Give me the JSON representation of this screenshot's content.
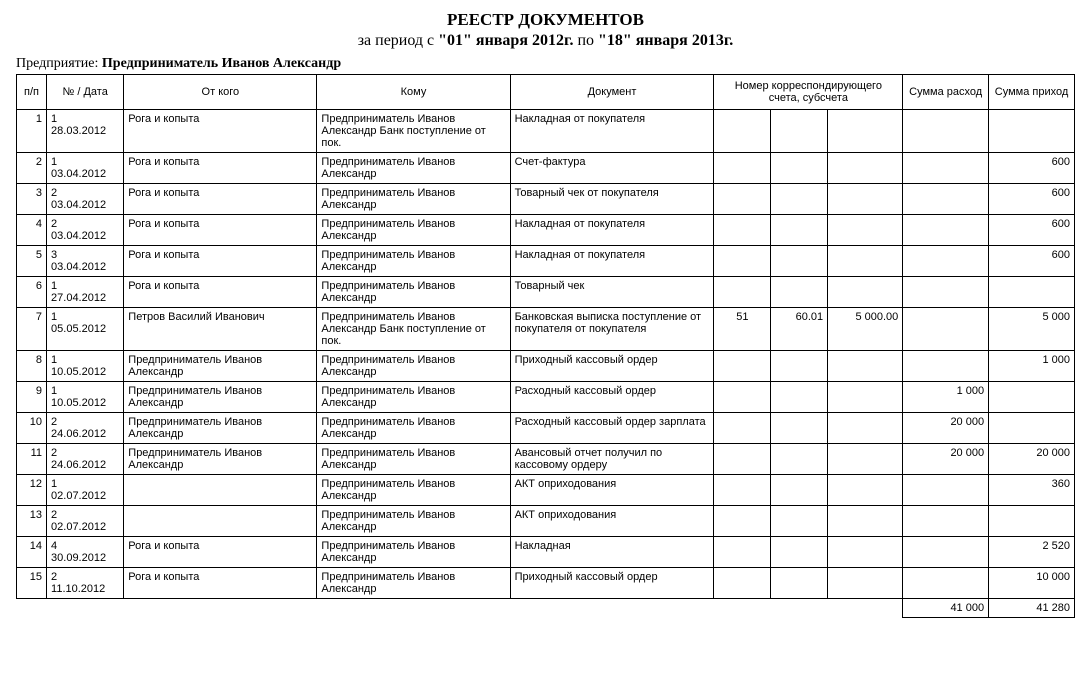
{
  "header": {
    "title": "РЕЕСТР ДОКУМЕНТОВ",
    "period_pre": "за период с ",
    "period_from_label": "\"01\" января 2012г.",
    "period_mid": " по ",
    "period_to_label": "\"18\" января 2013г.",
    "company_label": "Предприятие: ",
    "company_name": "Предприниматель Иванов Александр"
  },
  "columns": {
    "pp": "п/п",
    "num_date": "№ / Дата",
    "from": "От кого",
    "to": "Кому",
    "doc": "Документ",
    "acc": "Номер корреспондирующего счета, субсчета",
    "sum_exp": "Сумма расход",
    "sum_inc": "Сумма приход"
  },
  "rows": [
    {
      "pp": "1",
      "num": "1",
      "date": "28.03.2012",
      "from": "Рога и копыта",
      "to": "Предприниматель Иванов Александр Банк поступление от пок.",
      "doc": "Накладная от покупателя",
      "a1": "",
      "a2": "",
      "a3": "",
      "exp": "",
      "inc": ""
    },
    {
      "pp": "2",
      "num": "1",
      "date": "03.04.2012",
      "from": "Рога и копыта",
      "to": "Предприниматель Иванов Александр",
      "doc": "Счет-фактура",
      "a1": "",
      "a2": "",
      "a3": "",
      "exp": "",
      "inc": "600"
    },
    {
      "pp": "3",
      "num": "2",
      "date": "03.04.2012",
      "from": "Рога и копыта",
      "to": "Предприниматель Иванов Александр",
      "doc": "Товарный чек от покупателя",
      "a1": "",
      "a2": "",
      "a3": "",
      "exp": "",
      "inc": "600"
    },
    {
      "pp": "4",
      "num": "2",
      "date": "03.04.2012",
      "from": "Рога и копыта",
      "to": "Предприниматель Иванов Александр",
      "doc": "Накладная от покупателя",
      "a1": "",
      "a2": "",
      "a3": "",
      "exp": "",
      "inc": "600"
    },
    {
      "pp": "5",
      "num": "3",
      "date": "03.04.2012",
      "from": "Рога и копыта",
      "to": "Предприниматель Иванов Александр",
      "doc": "Накладная от покупателя",
      "a1": "",
      "a2": "",
      "a3": "",
      "exp": "",
      "inc": "600"
    },
    {
      "pp": "6",
      "num": "1",
      "date": "27.04.2012",
      "from": "Рога и копыта",
      "to": "Предприниматель Иванов Александр",
      "doc": "Товарный чек",
      "a1": "",
      "a2": "",
      "a3": "",
      "exp": "",
      "inc": ""
    },
    {
      "pp": "7",
      "num": "1",
      "date": "05.05.2012",
      "from": "Петров Василий Иванович",
      "to": "Предприниматель Иванов Александр Банк поступление от пок.",
      "doc": "Банковская выписка поступление от покупателя от покупателя",
      "a1": "51",
      "a2": "60.01",
      "a3": "5 000.00",
      "exp": "",
      "inc": "5 000"
    },
    {
      "pp": "8",
      "num": "1",
      "date": "10.05.2012",
      "from": "Предприниматель Иванов Александр",
      "to": "Предприниматель Иванов Александр",
      "doc": "Приходный кассовый ордер",
      "a1": "",
      "a2": "",
      "a3": "",
      "exp": "",
      "inc": "1 000"
    },
    {
      "pp": "9",
      "num": "1",
      "date": "10.05.2012",
      "from": "Предприниматель Иванов Александр",
      "to": "Предприниматель Иванов Александр",
      "doc": "Расходный кассовый ордер",
      "a1": "",
      "a2": "",
      "a3": "",
      "exp": "1 000",
      "inc": ""
    },
    {
      "pp": "10",
      "num": "2",
      "date": "24.06.2012",
      "from": "Предприниматель Иванов Александр",
      "to": "Предприниматель Иванов Александр",
      "doc": "Расходный кассовый ордер зарплата",
      "a1": "",
      "a2": "",
      "a3": "",
      "exp": "20 000",
      "inc": ""
    },
    {
      "pp": "11",
      "num": "2",
      "date": "24.06.2012",
      "from": "Предприниматель Иванов Александр",
      "to": "Предприниматель Иванов Александр",
      "doc": "Авансовый отчет получил по кассовому ордеру",
      "a1": "",
      "a2": "",
      "a3": "",
      "exp": "20 000",
      "inc": "20 000"
    },
    {
      "pp": "12",
      "num": "1",
      "date": "02.07.2012",
      "from": "",
      "to": "Предприниматель Иванов Александр",
      "doc": "АКТ оприходования",
      "a1": "",
      "a2": "",
      "a3": "",
      "exp": "",
      "inc": "360"
    },
    {
      "pp": "13",
      "num": "2",
      "date": "02.07.2012",
      "from": "",
      "to": "Предприниматель Иванов Александр",
      "doc": "АКТ оприходования",
      "a1": "",
      "a2": "",
      "a3": "",
      "exp": "",
      "inc": ""
    },
    {
      "pp": "14",
      "num": "4",
      "date": "30.09.2012",
      "from": "Рога и копыта",
      "to": "Предприниматель Иванов Александр",
      "doc": "Накладная",
      "a1": "",
      "a2": "",
      "a3": "",
      "exp": "",
      "inc": "2 520"
    },
    {
      "pp": "15",
      "num": "2",
      "date": "11.10.2012",
      "from": "Рога и копыта",
      "to": "Предприниматель Иванов Александр",
      "doc": "Приходный кассовый ордер",
      "a1": "",
      "a2": "",
      "a3": "",
      "exp": "",
      "inc": "10 000"
    }
  ],
  "totals": {
    "exp": "41 000",
    "inc": "41 280"
  }
}
